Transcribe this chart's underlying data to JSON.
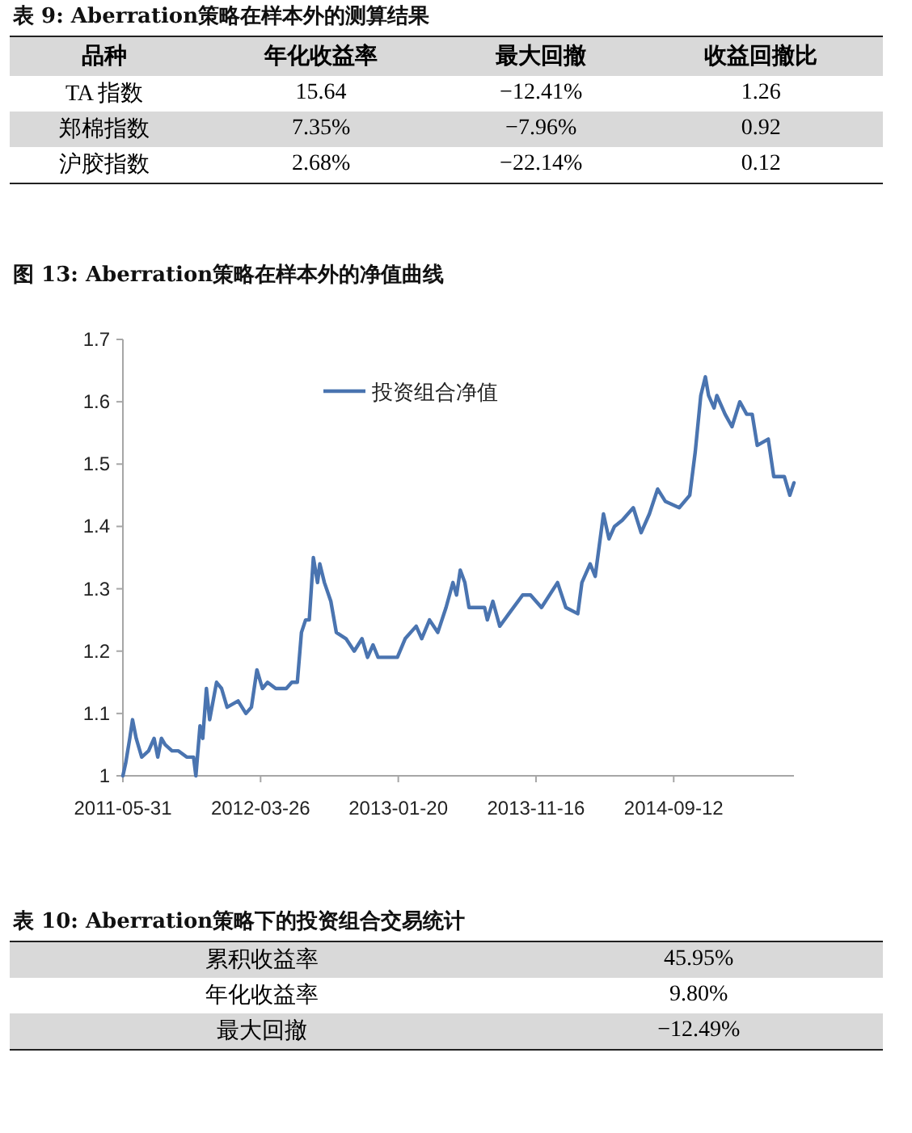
{
  "chart_data": [
    {
      "type": "other",
      "title": "表 9: Aberration策略在样本外的测算结果",
      "categories": [
        "品种",
        "年化收益率",
        "最大回撤",
        "收益回撤比"
      ],
      "cell_labels": [
        [
          "TA 指数",
          "15.64",
          "−12.41%",
          "1.26"
        ],
        [
          "郑棉指数",
          "7.35%",
          "−7.96%",
          "0.92"
        ],
        [
          "沪胶指数",
          "2.68%",
          "−22.14%",
          "0.12"
        ]
      ]
    },
    {
      "type": "line",
      "title": "图 13: Aberration策略在样本外的净值曲线",
      "legend": "top",
      "xlim": [
        "2011-05-31",
        "2015-06-01"
      ],
      "ylim": [
        1,
        1.7
      ],
      "yticks": [
        1,
        1.1,
        1.2,
        1.3,
        1.4,
        1.5,
        1.6,
        1.7
      ],
      "xticks": [
        {
          "value": "2011-05-31",
          "label": "2011-05-31"
        },
        {
          "value": "2012-03-26",
          "label": "2012-03-26"
        },
        {
          "value": "2013-01-20",
          "label": "2013-01-20"
        },
        {
          "value": "2013-11-16",
          "label": "2013-11-16"
        },
        {
          "value": "2014-09-12",
          "label": "2014-09-12"
        }
      ],
      "series": [
        {
          "name": "投资组合净值",
          "color": "#4a74b0",
          "x": [
            "2011-05-31",
            "2011-06-06",
            "2011-06-15",
            "2011-06-21",
            "2011-06-29",
            "2011-07-11",
            "2011-07-26",
            "2011-08-07",
            "2011-08-15",
            "2011-08-23",
            "2011-08-31",
            "2011-09-15",
            "2011-09-29",
            "2011-10-17",
            "2011-11-01",
            "2011-11-06",
            "2011-11-15",
            "2011-11-21",
            "2011-11-29",
            "2011-12-06",
            "2011-12-21",
            "2012-01-01",
            "2012-01-13",
            "2012-02-06",
            "2012-02-23",
            "2012-03-06",
            "2012-03-18",
            "2012-03-30",
            "2012-04-10",
            "2012-04-28",
            "2012-05-21",
            "2012-06-02",
            "2012-06-14",
            "2012-06-23",
            "2012-07-02",
            "2012-07-10",
            "2012-07-19",
            "2012-07-28",
            "2012-08-02",
            "2012-08-12",
            "2012-08-26",
            "2012-09-07",
            "2012-09-28",
            "2012-10-16",
            "2012-11-02",
            "2012-11-14",
            "2012-11-26",
            "2012-12-07",
            "2013-01-18",
            "2013-02-04",
            "2013-02-28",
            "2013-03-12",
            "2013-03-29",
            "2013-04-16",
            "2013-05-04",
            "2013-05-19",
            "2013-05-27",
            "2013-06-04",
            "2013-06-14",
            "2013-06-23",
            "2013-07-27",
            "2013-08-02",
            "2013-08-14",
            "2013-08-29",
            "2013-09-18",
            "2013-10-18",
            "2013-11-04",
            "2013-11-28",
            "2014-01-02",
            "2014-01-20",
            "2014-02-15",
            "2014-02-24",
            "2014-03-14",
            "2014-03-25",
            "2014-04-12",
            "2014-04-24",
            "2014-05-06",
            "2014-05-23",
            "2014-06-16",
            "2014-07-03",
            "2014-07-21",
            "2014-08-08",
            "2014-08-25",
            "2014-09-24",
            "2014-10-17",
            "2014-10-29",
            "2014-11-10",
            "2014-11-20",
            "2014-11-27",
            "2014-12-09",
            "2014-12-15",
            "2015-01-02",
            "2015-01-17",
            "2015-02-03",
            "2015-02-18",
            "2015-03-02",
            "2015-03-13",
            "2015-04-06",
            "2015-04-18",
            "2015-05-11",
            "2015-05-23",
            "2015-06-01"
          ],
          "values": [
            1.0,
            1.02,
            1.06,
            1.09,
            1.06,
            1.03,
            1.04,
            1.06,
            1.03,
            1.06,
            1.05,
            1.04,
            1.04,
            1.03,
            1.03,
            1.0,
            1.08,
            1.06,
            1.14,
            1.09,
            1.15,
            1.14,
            1.11,
            1.12,
            1.1,
            1.11,
            1.17,
            1.14,
            1.15,
            1.14,
            1.14,
            1.15,
            1.15,
            1.23,
            1.25,
            1.25,
            1.35,
            1.31,
            1.34,
            1.31,
            1.28,
            1.23,
            1.22,
            1.2,
            1.22,
            1.19,
            1.21,
            1.19,
            1.19,
            1.22,
            1.24,
            1.22,
            1.25,
            1.23,
            1.27,
            1.31,
            1.29,
            1.33,
            1.31,
            1.27,
            1.27,
            1.25,
            1.28,
            1.24,
            1.26,
            1.29,
            1.29,
            1.27,
            1.31,
            1.27,
            1.26,
            1.31,
            1.34,
            1.32,
            1.42,
            1.38,
            1.4,
            1.41,
            1.43,
            1.39,
            1.42,
            1.46,
            1.44,
            1.43,
            1.45,
            1.52,
            1.61,
            1.64,
            1.61,
            1.59,
            1.61,
            1.58,
            1.56,
            1.6,
            1.58,
            1.58,
            1.53,
            1.54,
            1.48,
            1.48,
            1.45,
            1.47
          ]
        }
      ]
    },
    {
      "type": "other",
      "title": "表 10: Aberration策略下的投资组合交易统计",
      "cell_labels": [
        [
          "累积收益率",
          "45.95%"
        ],
        [
          "年化收益率",
          "9.80%"
        ],
        [
          "最大回撤",
          "−12.49%"
        ]
      ]
    }
  ]
}
